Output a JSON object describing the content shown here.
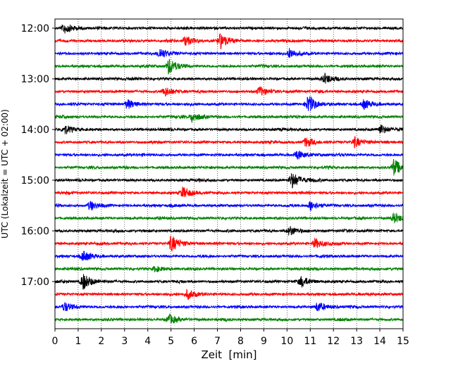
{
  "chart_data": {
    "type": "line",
    "subtype": "helicorder-seismogram",
    "title": "",
    "xlabel": "Zeit  [min]",
    "ylabel": "UTC (Lokalzeit = UTC + 02:00)",
    "xlim": [
      0,
      15
    ],
    "x_ticks": [
      "0",
      "1",
      "2",
      "3",
      "4",
      "5",
      "6",
      "7",
      "8",
      "9",
      "10",
      "11",
      "12",
      "13",
      "14",
      "15"
    ],
    "y_tick_labels": [
      "12:00",
      "13:00",
      "14:00",
      "15:00",
      "16:00",
      "17:00"
    ],
    "trace_start_times_utc": [
      "12:00",
      "12:15",
      "12:30",
      "12:45",
      "13:00",
      "13:15",
      "13:30",
      "13:45",
      "14:00",
      "14:15",
      "14:30",
      "14:45",
      "15:00",
      "15:15",
      "15:30",
      "15:45",
      "16:00",
      "16:15",
      "16:30",
      "16:45",
      "17:00",
      "17:15",
      "17:30",
      "17:45"
    ],
    "trace_color_cycle": [
      "#000000",
      "#ff0000",
      "#0000ff",
      "#008000"
    ],
    "grid": {
      "vertical_dotted": true,
      "horizontal": false
    },
    "legend": "none",
    "notable_events": [
      {
        "trace": 0,
        "minute": 0.4,
        "amplitude": "medium"
      },
      {
        "trace": 1,
        "minute": 7.1,
        "amplitude": "high"
      },
      {
        "trace": 1,
        "minute": 5.6,
        "amplitude": "medium"
      },
      {
        "trace": 2,
        "minute": 4.5,
        "amplitude": "medium"
      },
      {
        "trace": 2,
        "minute": 10.1,
        "amplitude": "medium"
      },
      {
        "trace": 3,
        "minute": 4.9,
        "amplitude": "high"
      },
      {
        "trace": 4,
        "minute": 11.6,
        "amplitude": "medium"
      },
      {
        "trace": 5,
        "minute": 4.7,
        "amplitude": "medium"
      },
      {
        "trace": 5,
        "minute": 8.8,
        "amplitude": "medium"
      },
      {
        "trace": 6,
        "minute": 10.9,
        "amplitude": "high"
      },
      {
        "trace": 6,
        "minute": 13.3,
        "amplitude": "medium"
      },
      {
        "trace": 6,
        "minute": 3.1,
        "amplitude": "medium"
      },
      {
        "trace": 7,
        "minute": 5.9,
        "amplitude": "medium"
      },
      {
        "trace": 8,
        "minute": 0.4,
        "amplitude": "medium"
      },
      {
        "trace": 8,
        "minute": 14.0,
        "amplitude": "medium"
      },
      {
        "trace": 9,
        "minute": 12.9,
        "amplitude": "medium"
      },
      {
        "trace": 9,
        "minute": 10.8,
        "amplitude": "medium"
      },
      {
        "trace": 10,
        "minute": 10.4,
        "amplitude": "medium"
      },
      {
        "trace": 11,
        "minute": 14.6,
        "amplitude": "high"
      },
      {
        "trace": 12,
        "minute": 10.2,
        "amplitude": "high"
      },
      {
        "trace": 13,
        "minute": 5.5,
        "amplitude": "medium"
      },
      {
        "trace": 14,
        "minute": 1.5,
        "amplitude": "medium"
      },
      {
        "trace": 14,
        "minute": 11.0,
        "amplitude": "medium"
      },
      {
        "trace": 15,
        "minute": 14.6,
        "amplitude": "medium"
      },
      {
        "trace": 16,
        "minute": 10.1,
        "amplitude": "medium"
      },
      {
        "trace": 17,
        "minute": 5.0,
        "amplitude": "high"
      },
      {
        "trace": 17,
        "minute": 11.2,
        "amplitude": "medium"
      },
      {
        "trace": 18,
        "minute": 1.2,
        "amplitude": "medium"
      },
      {
        "trace": 19,
        "minute": 4.3,
        "amplitude": "low"
      },
      {
        "trace": 20,
        "minute": 1.2,
        "amplitude": "high"
      },
      {
        "trace": 20,
        "minute": 10.6,
        "amplitude": "medium"
      },
      {
        "trace": 21,
        "minute": 5.7,
        "amplitude": "medium"
      },
      {
        "trace": 22,
        "minute": 11.3,
        "amplitude": "medium"
      },
      {
        "trace": 22,
        "minute": 0.4,
        "amplitude": "medium"
      },
      {
        "trace": 23,
        "minute": 4.9,
        "amplitude": "medium"
      }
    ]
  }
}
